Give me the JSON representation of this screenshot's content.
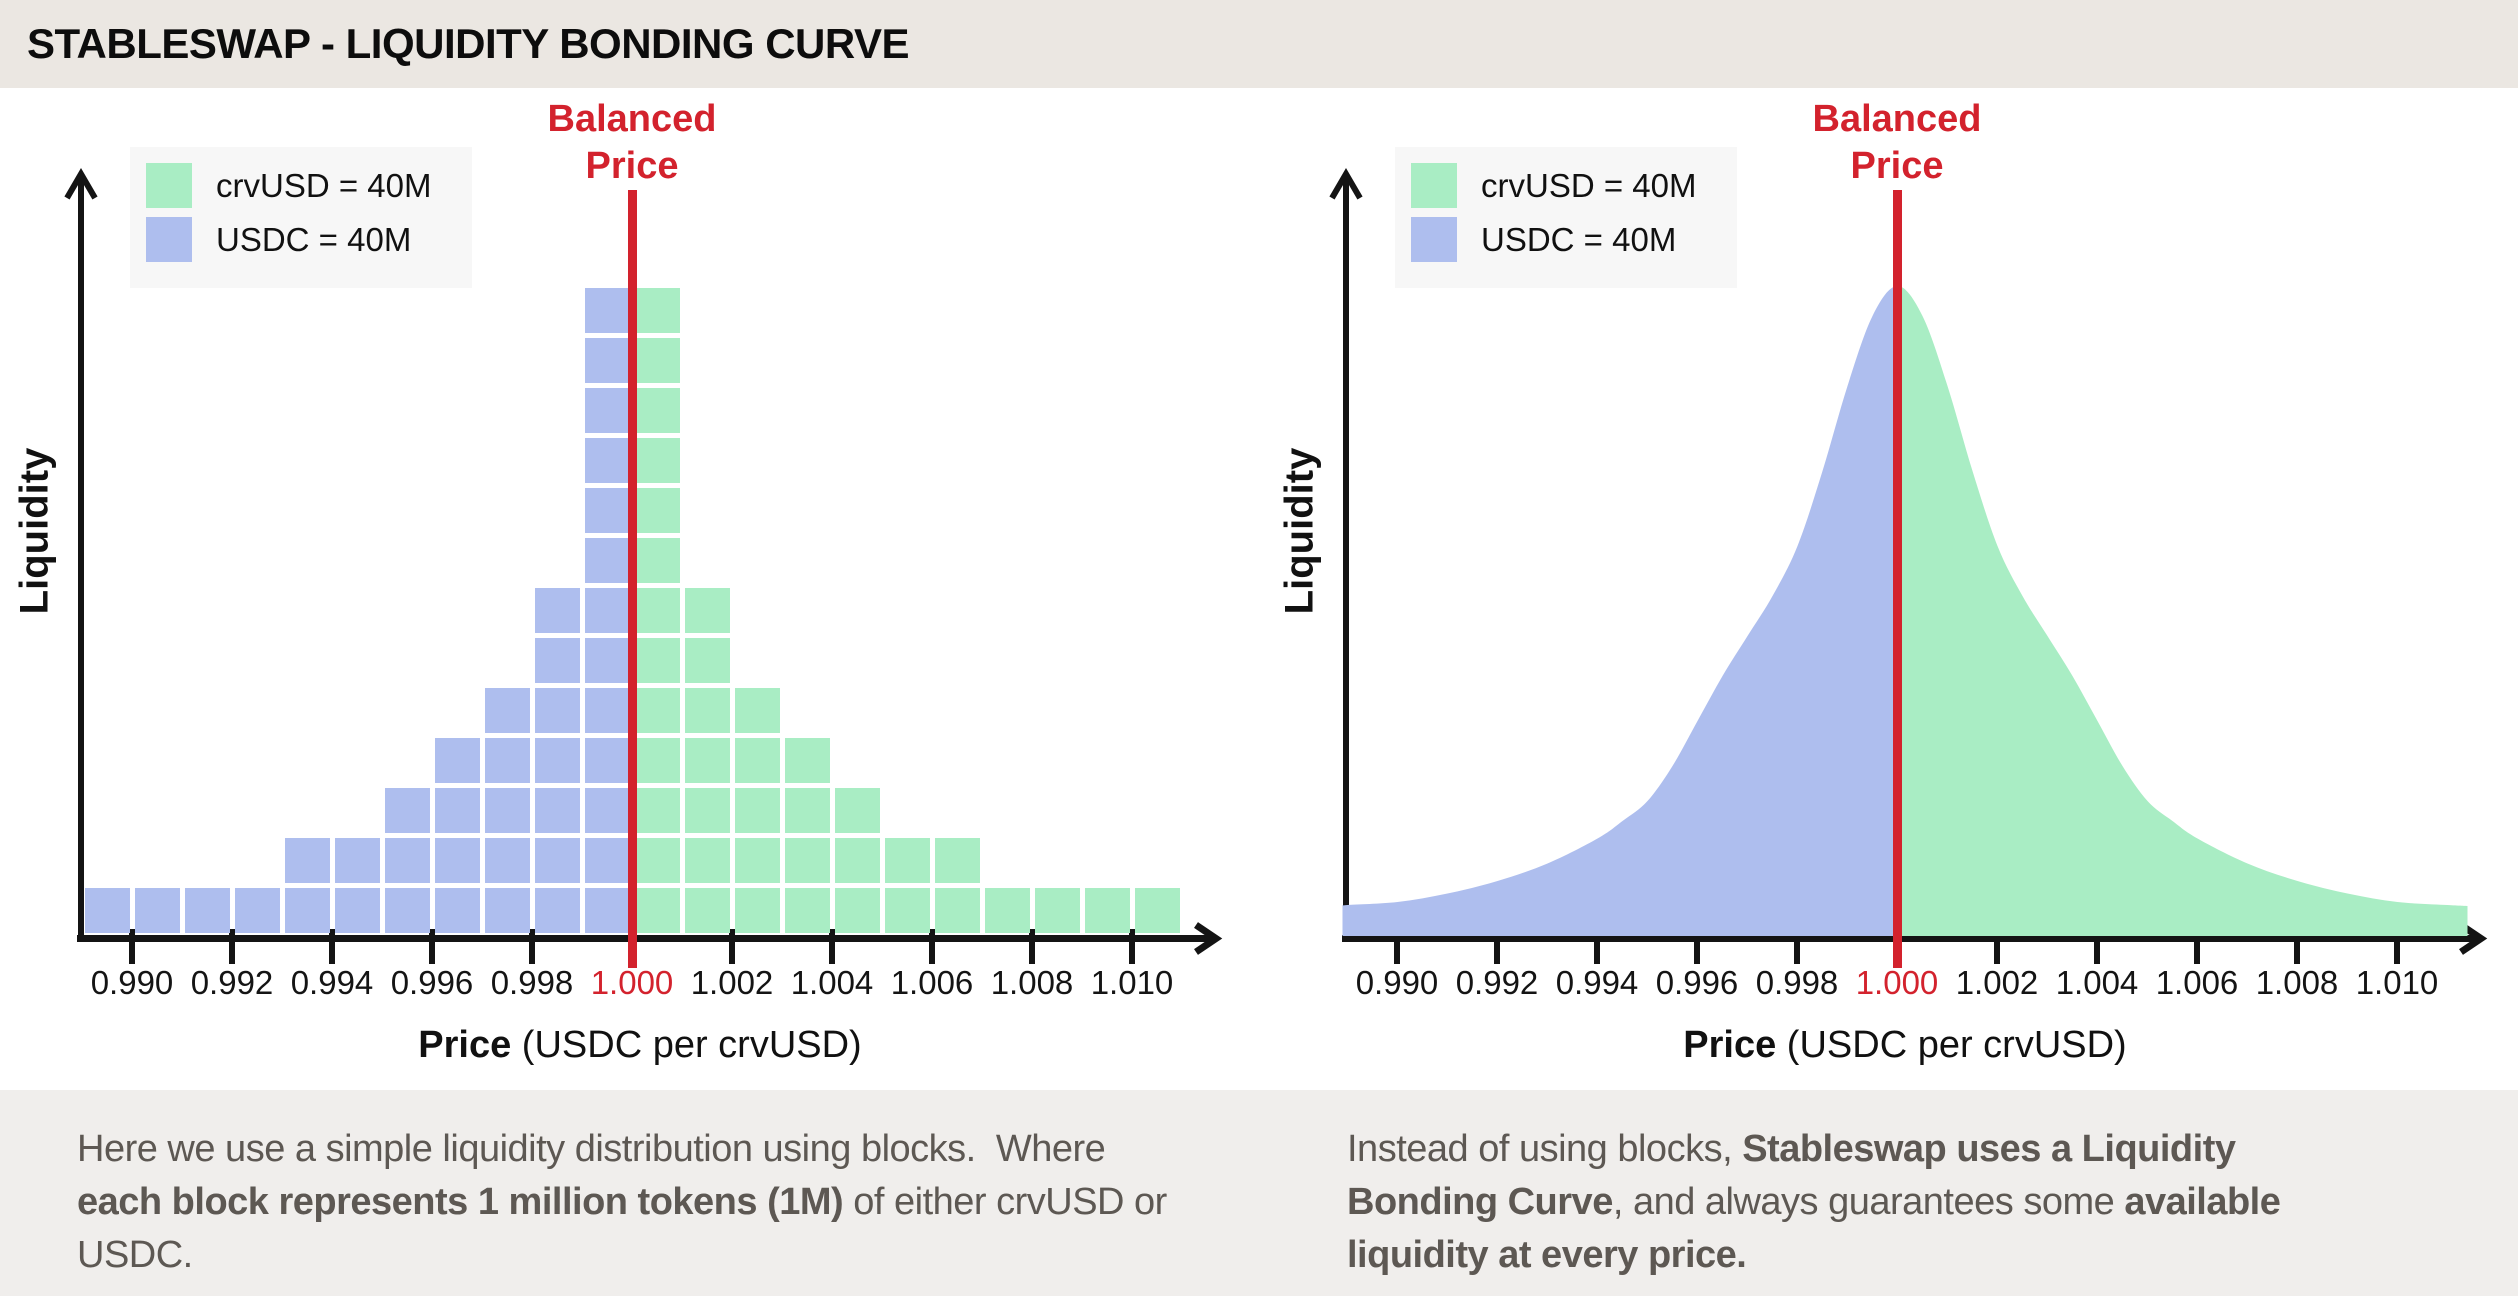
{
  "header": {
    "title": "STABLESWAP - LIQUIDITY BONDING CURVE"
  },
  "colors": {
    "crvusd_green": "#a9edc4",
    "usdc_blue": "#aebeee",
    "balanced_red": "#d3222d",
    "axis_black": "#141414",
    "title_bar_bg": "#ebe7e2",
    "footer_bg": "#f0eeec",
    "footer_text": "#5d5853",
    "legend_bg": "#f7f7f7",
    "page_bg": "#ffffff",
    "title_text": "#0d0d0d"
  },
  "legend": {
    "items": [
      {
        "id": "crvusd",
        "label": "crvUSD = 40M",
        "color": "#a9edc4"
      },
      {
        "id": "usdc",
        "label": "USDC = 40M",
        "color": "#aebeee"
      }
    ]
  },
  "balanced_price_label": {
    "line1": "Balanced",
    "line2": "Price"
  },
  "axes": {
    "y_title": "Liquidity",
    "x_title_bold": "Price",
    "x_title_rest": " (USDC per crvUSD)",
    "tick_labels": [
      "0.990",
      "0.992",
      "0.994",
      "0.996",
      "0.998",
      "1.000",
      "1.002",
      "1.004",
      "1.006",
      "1.008",
      "1.010"
    ],
    "highlight_tick": "1.000"
  },
  "chart_data": [
    {
      "type": "bar",
      "panel": "left",
      "title": "Simple liquidity distribution using blocks (1 block = 1M tokens)",
      "xlabel": "Price (USDC per crvUSD)",
      "ylabel": "Liquidity",
      "x_ticks": [
        0.99,
        0.992,
        0.994,
        0.996,
        0.998,
        1.0,
        1.002,
        1.004,
        1.006,
        1.008,
        1.01
      ],
      "balanced_price": 1.0,
      "bin_width": 0.001,
      "ylim": [
        0,
        14
      ],
      "series": [
        {
          "name": "USDC",
          "legend": "USDC = 40M",
          "total_millions": 40,
          "color": "#aebeee",
          "side": "left_of_balanced_price",
          "bin_centers": [
            0.9895,
            0.9905,
            0.9915,
            0.9925,
            0.9935,
            0.9945,
            0.9955,
            0.9965,
            0.9975,
            0.9985,
            0.9995
          ],
          "block_counts": [
            1,
            1,
            1,
            1,
            2,
            2,
            3,
            4,
            5,
            7,
            13
          ]
        },
        {
          "name": "crvUSD",
          "legend": "crvUSD = 40M",
          "total_millions": 40,
          "color": "#a9edc4",
          "side": "right_of_balanced_price",
          "bin_centers": [
            1.0005,
            1.0015,
            1.0025,
            1.0035,
            1.0045,
            1.0055,
            1.0065,
            1.0075,
            1.0085,
            1.0095,
            1.0105
          ],
          "block_counts": [
            13,
            7,
            5,
            4,
            3,
            2,
            2,
            1,
            1,
            1,
            1
          ]
        }
      ]
    },
    {
      "type": "area",
      "panel": "right",
      "title": "Stableswap liquidity bonding curve",
      "xlabel": "Price (USDC per crvUSD)",
      "ylabel": "Liquidity",
      "x_ticks": [
        0.99,
        0.992,
        0.994,
        0.996,
        0.998,
        1.0,
        1.002,
        1.004,
        1.006,
        1.008,
        1.01
      ],
      "balanced_price": 1.0,
      "split_at": 1.0,
      "left_series": "USDC",
      "right_series": "crvUSD",
      "y_units": "millions of tokens (1 unit = 1M)",
      "curve": {
        "x": [
          0.9889,
          0.989,
          0.99,
          0.991,
          0.992,
          0.993,
          0.994,
          0.9945,
          0.995,
          0.9955,
          0.996,
          0.9965,
          0.997,
          0.9975,
          0.998,
          0.9985,
          0.999,
          0.9995,
          1.0,
          1.0005,
          1.001,
          1.0015,
          1.002,
          1.0025,
          1.003,
          1.0035,
          1.004,
          1.0045,
          1.005,
          1.0055,
          1.006,
          1.007,
          1.008,
          1.009,
          1.01,
          1.011,
          1.0114
        ],
        "y": [
          0.6,
          0.62,
          0.68,
          0.85,
          1.1,
          1.45,
          1.95,
          2.3,
          2.7,
          3.4,
          4.3,
          5.2,
          6.0,
          6.8,
          7.8,
          9.3,
          11.0,
          12.4,
          13.0,
          12.4,
          11.0,
          9.3,
          7.8,
          6.8,
          6.0,
          5.2,
          4.3,
          3.4,
          2.7,
          2.3,
          1.95,
          1.45,
          1.1,
          0.85,
          0.68,
          0.62,
          0.6
        ]
      }
    }
  ],
  "footer": {
    "left": {
      "lines": [
        [
          {
            "t": "Here we use a simple liquidity distribution using blocks.  Where",
            "b": false
          }
        ],
        [
          {
            "t": "each block represents 1 million tokens (1M)",
            "b": true
          },
          {
            "t": " of either crvUSD or",
            "b": false
          }
        ],
        [
          {
            "t": "USDC.",
            "b": false
          }
        ]
      ]
    },
    "right": {
      "lines": [
        [
          {
            "t": "Instead of using blocks, ",
            "b": false
          },
          {
            "t": "Stableswap uses a Liquidity",
            "b": true
          }
        ],
        [
          {
            "t": "Bonding Curve",
            "b": true
          },
          {
            "t": ", and always guarantees some ",
            "b": false
          },
          {
            "t": "available",
            "b": true
          }
        ],
        [
          {
            "t": "liquidity at every price.",
            "b": true
          }
        ]
      ]
    }
  }
}
